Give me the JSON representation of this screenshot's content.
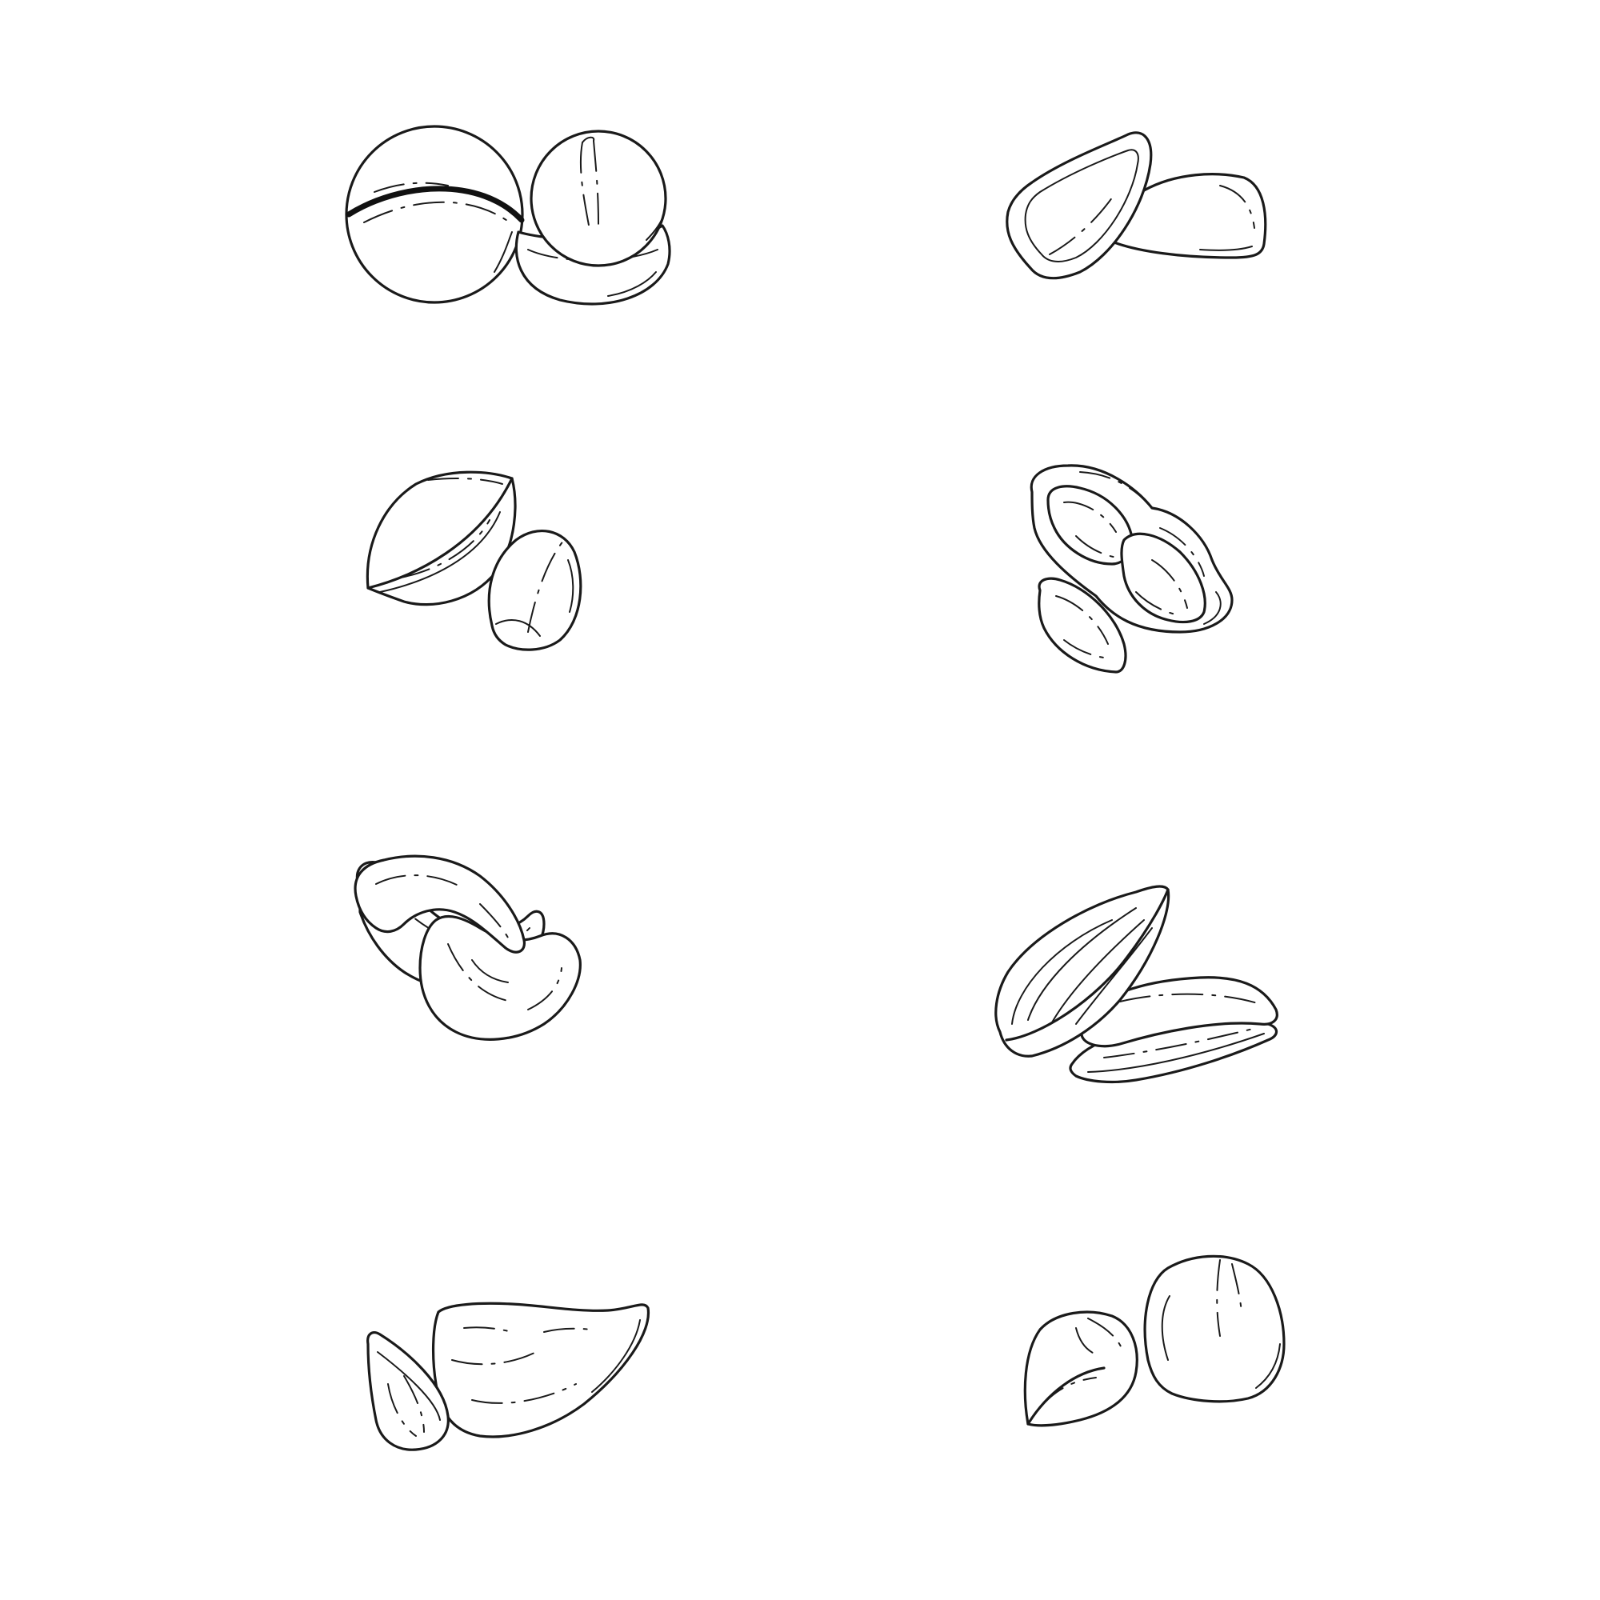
{
  "illustration": {
    "style": "line-art",
    "colors": {
      "background": "#ffffff",
      "ink": "#1a1a1a"
    },
    "items": [
      {
        "name": "macadamia-nuts-icon"
      },
      {
        "name": "pine-nuts-icon"
      },
      {
        "name": "brazil-nut-and-coffee-bean-icon"
      },
      {
        "name": "peanuts-icon"
      },
      {
        "name": "cashews-icon"
      },
      {
        "name": "sunflower-seeds-icon"
      },
      {
        "name": "almond-and-brazil-nut-icon"
      },
      {
        "name": "hazelnuts-icon"
      }
    ]
  }
}
